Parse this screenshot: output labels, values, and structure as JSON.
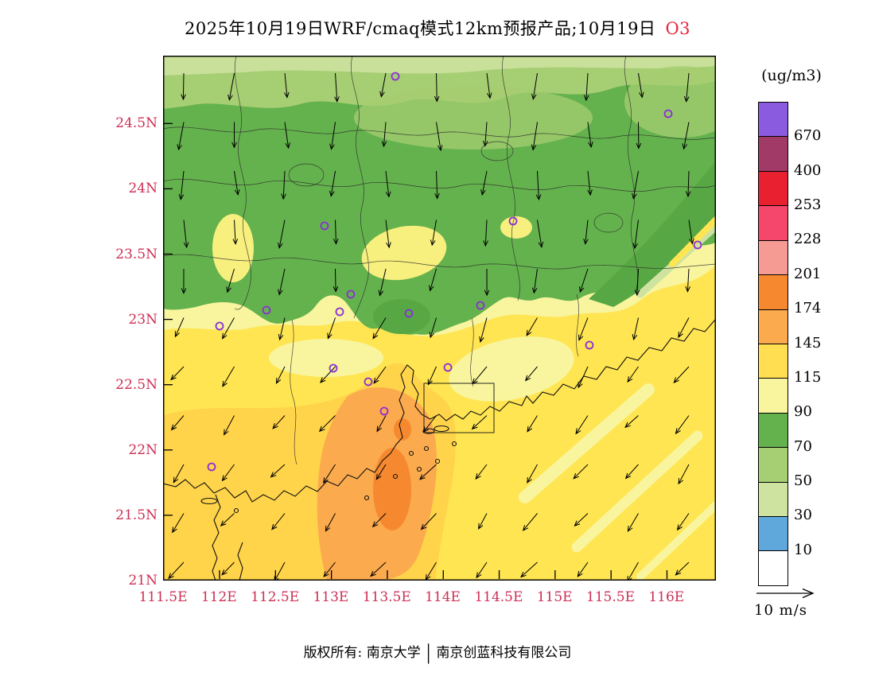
{
  "title": {
    "main": "2025年10月19日WRF/cmaq模式12km预报产品;10月19日",
    "species": "O3"
  },
  "axes": {
    "lat": [
      "24.5N",
      "24N",
      "23.5N",
      "23N",
      "22.5N",
      "22N",
      "21.5N",
      "21N"
    ],
    "lon": [
      "111.5E",
      "112E",
      "112.5E",
      "113E",
      "113.5E",
      "114E",
      "114.5E",
      "115E",
      "115.5E",
      "116E"
    ]
  },
  "colorbar": {
    "unit": "(ug/m3)",
    "levels": [
      "670",
      "400",
      "253",
      "228",
      "201",
      "174",
      "145",
      "115",
      "90",
      "70",
      "50",
      "30",
      "10"
    ],
    "colors": [
      "#8A5BDE",
      "#A23A68",
      "#E8202F",
      "#F4476B",
      "#F59B94",
      "#F6892F",
      "#FBAA4E",
      "#FFDE52",
      "#F8F59E",
      "#64B24D",
      "#A6CE72",
      "#CFE3A0",
      "#5FA8DC",
      "#FFFFFF"
    ]
  },
  "wind": {
    "legend_label": "10 m/s",
    "north_angle": 91,
    "south_angle": 128,
    "north_len": 33,
    "south_len": 25,
    "cols": 11,
    "rows": 11
  },
  "markers": [
    [
      292,
      26
    ],
    [
      635,
      73
    ],
    [
      203,
      214
    ],
    [
      440,
      208
    ],
    [
      672,
      238
    ],
    [
      236,
      300
    ],
    [
      222,
      322
    ],
    [
      309,
      324
    ],
    [
      399,
      314
    ],
    [
      71,
      340
    ],
    [
      130,
      320
    ],
    [
      536,
      364
    ],
    [
      214,
      393
    ],
    [
      358,
      392
    ],
    [
      258,
      410
    ],
    [
      278,
      447
    ],
    [
      61,
      517
    ]
  ],
  "footer": {
    "left": "版权所有: 南京大学",
    "divider": "|",
    "right": "南京创蓝科技有限公司"
  },
  "colors": {
    "axis_label": "#CE2F55",
    "species": "#E8243E",
    "marker": "#8B2FD6",
    "arrow": "#000000"
  },
  "chart_data": {
    "type": "heatmap",
    "title": "2025年10月19日WRF/cmaq模式12km预报产品;10月19日 O3",
    "unit": "ug/m3",
    "x_ticks": [
      "111.5E",
      "112E",
      "112.5E",
      "113E",
      "113.5E",
      "114E",
      "114.5E",
      "115E",
      "115.5E",
      "116E"
    ],
    "y_ticks": [
      "21N",
      "21.5N",
      "22N",
      "22.5N",
      "23N",
      "23.5N",
      "24N",
      "24.5N"
    ],
    "color_levels": [
      10,
      30,
      50,
      70,
      90,
      115,
      145,
      174,
      201,
      228,
      253,
      400,
      670
    ],
    "level_colors_low_to_high": [
      "#FFFFFF",
      "#5FA8DC",
      "#CFE3A0",
      "#A6CE72",
      "#64B24D",
      "#F8F59E",
      "#FFDE52",
      "#FBAA4E",
      "#F6892F",
      "#F59B94",
      "#F4476B",
      "#E8202F",
      "#A23A68",
      "#8A5BDE"
    ],
    "regions_summary": [
      {
        "area": "north of ~23.3N (inland Guangdong)",
        "value_range": "50-90 (greens)"
      },
      {
        "area": "yellow pockets inside green near 112E/23.6N and 113.5E/23.5N",
        "value_range": "90-115"
      },
      {
        "area": "transition belt ~23-23.4N",
        "value_range": "90-115 (pale yellow)"
      },
      {
        "area": "south & coastal zone 21-23N",
        "value_range": "115-145 (yellow)"
      },
      {
        "area": "Pearl River estuary / offshore 113-113.8E, 21-22.4N",
        "value_range": "145-201 (orange, small core 174-201)"
      }
    ],
    "wind_field": "arrows point S over the north (northerly flow) turning SW-pointing over the southern/offshore area, reference vector 10 m/s",
    "station_markers": "purple open circles at city sites across the domain"
  }
}
